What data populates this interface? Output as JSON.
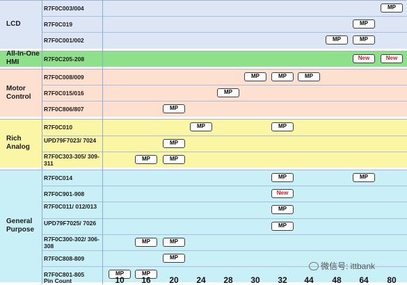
{
  "pin_counts": [
    "10",
    "16",
    "20",
    "24",
    "28",
    "30",
    "32",
    "44",
    "48",
    "64",
    "80"
  ],
  "x_axis_label": "Pin Count",
  "watermark": "微信号: ittbank",
  "colors": {
    "lcd": "#dde6f5",
    "hmi": "#8fe08a",
    "motor": "#fde0cf",
    "analog": "#fbf6a6",
    "general": "#c9f0f7",
    "new_text": "#d21c1c"
  },
  "categories": [
    {
      "label": "LCD",
      "color": "lcd",
      "rows": [
        {
          "part": "R7F0C003/004",
          "marks": [
            {
              "col": "80",
              "label": "MP"
            }
          ]
        },
        {
          "part": "R7F0C019",
          "marks": [
            {
              "col": "64",
              "label": "MP"
            }
          ]
        },
        {
          "part": "R7F0C001/002",
          "marks": [
            {
              "col": "48",
              "label": "MP"
            },
            {
              "col": "64",
              "label": "MP"
            }
          ]
        }
      ]
    },
    {
      "label": "All-In-One HMI",
      "color": "hmi",
      "rows": [
        {
          "part": "R7F0C205-208",
          "marks": [
            {
              "col": "64",
              "label": "New"
            },
            {
              "col": "80",
              "label": "New"
            }
          ]
        }
      ]
    },
    {
      "label": "Motor Control",
      "color": "motor",
      "rows": [
        {
          "part": "R7F0C008/009",
          "marks": [
            {
              "col": "30",
              "label": "MP"
            },
            {
              "col": "32",
              "label": "MP"
            },
            {
              "col": "44",
              "label": "MP"
            }
          ]
        },
        {
          "part": "R7F0C015/016",
          "marks": [
            {
              "col": "28",
              "label": "MP"
            }
          ]
        },
        {
          "part": "R7F0C806/807",
          "marks": [
            {
              "col": "20",
              "label": "MP"
            }
          ]
        }
      ]
    },
    {
      "label": "Rich Analog",
      "color": "analog",
      "rows": [
        {
          "part": "R7F0C010",
          "marks": [
            {
              "col": "24",
              "label": "MP"
            },
            {
              "col": "32",
              "label": "MP"
            }
          ]
        },
        {
          "part": "UPD79F7023/ 7024",
          "marks": [
            {
              "col": "20",
              "label": "MP"
            }
          ]
        },
        {
          "part": "R7F0C303-305/ 309-311",
          "marks": [
            {
              "col": "16",
              "label": "MP"
            },
            {
              "col": "20",
              "label": "MP"
            }
          ]
        }
      ]
    },
    {
      "label": "General Purpose",
      "color": "general",
      "rows": [
        {
          "part": "R7F0C014",
          "marks": [
            {
              "col": "32",
              "label": "MP"
            },
            {
              "col": "64",
              "label": "MP"
            }
          ]
        },
        {
          "part": "R7F0C901-908",
          "marks": [
            {
              "col": "32",
              "label": "New"
            }
          ]
        },
        {
          "part": "R7F0C011/ 012/013",
          "marks": [
            {
              "col": "32",
              "label": "MP"
            }
          ]
        },
        {
          "part": "UPD79F7025/ 7026",
          "marks": [
            {
              "col": "32",
              "label": "MP"
            }
          ]
        },
        {
          "part": "R7F0C300-302/ 306-308",
          "marks": [
            {
              "col": "16",
              "label": "MP"
            },
            {
              "col": "20",
              "label": "MP"
            }
          ]
        },
        {
          "part": "R7F0C808-809",
          "marks": [
            {
              "col": "20",
              "label": "MP"
            }
          ]
        },
        {
          "part": "R7F0C801-805",
          "marks": [
            {
              "col": "10",
              "label": "MP"
            },
            {
              "col": "16",
              "label": "MP"
            }
          ]
        }
      ]
    }
  ]
}
